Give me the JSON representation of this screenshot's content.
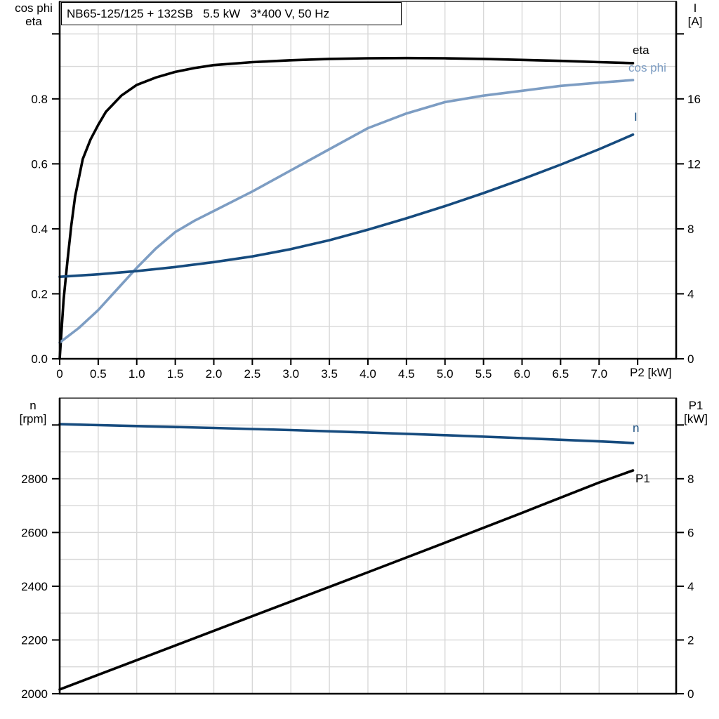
{
  "title_box": {
    "text": "NB65-125/125 + 132SB   5.5 kW   3*400 V, 50 Hz"
  },
  "labels": {
    "upper_left_title_1": "cos phi",
    "upper_left_title_2": "eta",
    "upper_right_title_1": "I",
    "upper_right_title_2": "[A]",
    "x_axis_title": "P2 [kW]",
    "lower_left_title_1": "n",
    "lower_left_title_2": "[rpm]",
    "lower_right_title_1": "P1",
    "lower_right_title_2": "[kW]",
    "curve_eta": "eta",
    "curve_cosphi": "cos phi",
    "curve_I": "I",
    "curve_n": "n",
    "curve_P1": "P1"
  },
  "colors": {
    "black_curve": "#000000",
    "light_blue_curve": "#7d9dc3",
    "dark_blue_curve": "#164b7e",
    "gridline": "#d8d8d8",
    "axis": "#000000"
  },
  "chart_data": [
    {
      "type": "line",
      "title": "NB65-125/125 + 132SB   5.5 kW   3*400 V, 50 Hz",
      "grid": true,
      "x_axis": {
        "title": "P2 [kW]",
        "min": 0,
        "max": 8,
        "grid_step": 0.5,
        "labeled_ticks": [
          0,
          0.5,
          1.0,
          1.5,
          2.0,
          2.5,
          3.0,
          3.5,
          4.0,
          4.5,
          5.0,
          5.5,
          6.0,
          6.5,
          7.0
        ],
        "tick_labels": [
          "0",
          "0.5",
          "1.0",
          "1.5",
          "2.0",
          "2.5",
          "3.0",
          "3.5",
          "4.0",
          "4.5",
          "5.0",
          "5.5",
          "6.0",
          "6.5",
          "7.0"
        ],
        "unlabeled_ticks": [
          7.5
        ]
      },
      "y_left": {
        "title": "cos phi / eta",
        "min": 0,
        "max": 1.1,
        "grid_step": 0.1,
        "labeled_ticks": [
          0.0,
          0.2,
          0.4,
          0.6,
          0.8
        ],
        "tick_labels": [
          "0.0",
          "0.2",
          "0.4",
          "0.6",
          "0.8"
        ],
        "unlabeled_ticks": [
          1.0
        ]
      },
      "y_right": {
        "title": "I [A]",
        "min": 0,
        "max": 22,
        "labeled_ticks": [
          0,
          4,
          8,
          12,
          16
        ],
        "tick_labels": [
          "0",
          "4",
          "8",
          "12",
          "16"
        ],
        "unlabeled_ticks": [
          20
        ]
      },
      "series": [
        {
          "name": "eta",
          "axis": "left",
          "color": "#000000",
          "x": [
            0,
            0.05,
            0.1,
            0.15,
            0.2,
            0.3,
            0.4,
            0.5,
            0.6,
            0.8,
            1.0,
            1.25,
            1.5,
            1.75,
            2.0,
            2.5,
            3.0,
            3.5,
            4.0,
            4.5,
            5.0,
            5.5,
            6.0,
            6.5,
            7.0,
            7.44
          ],
          "y": [
            0,
            0.18,
            0.3,
            0.41,
            0.5,
            0.615,
            0.675,
            0.72,
            0.76,
            0.81,
            0.843,
            0.866,
            0.883,
            0.895,
            0.904,
            0.913,
            0.919,
            0.923,
            0.925,
            0.9255,
            0.925,
            0.923,
            0.92,
            0.917,
            0.913,
            0.91
          ]
        },
        {
          "name": "cos phi",
          "axis": "left",
          "color": "#7d9dc3",
          "x": [
            0,
            0.25,
            0.5,
            0.75,
            1.0,
            1.25,
            1.5,
            1.75,
            2.0,
            2.5,
            3.0,
            3.5,
            4.0,
            4.5,
            5.0,
            5.5,
            6.0,
            6.5,
            7.0,
            7.44
          ],
          "y": [
            0.05,
            0.095,
            0.15,
            0.215,
            0.28,
            0.34,
            0.39,
            0.425,
            0.455,
            0.515,
            0.58,
            0.645,
            0.71,
            0.755,
            0.79,
            0.81,
            0.825,
            0.84,
            0.85,
            0.858
          ]
        },
        {
          "name": "I",
          "axis": "right",
          "color": "#164b7e",
          "x": [
            0,
            0.5,
            1.0,
            1.5,
            2.0,
            2.5,
            3.0,
            3.5,
            4.0,
            4.5,
            5.0,
            5.5,
            6.0,
            6.5,
            7.0,
            7.44
          ],
          "y": [
            5.05,
            5.2,
            5.4,
            5.65,
            5.95,
            6.3,
            6.75,
            7.3,
            7.95,
            8.65,
            9.4,
            10.2,
            11.05,
            11.95,
            12.9,
            13.8
          ]
        }
      ]
    },
    {
      "type": "line",
      "grid": true,
      "x_axis": {
        "title": "",
        "min": 0,
        "max": 8,
        "grid_step": 0.5,
        "labeled_ticks": [],
        "tick_labels": [],
        "unlabeled_ticks": []
      },
      "y_left": {
        "title": "n [rpm]",
        "min": 2000,
        "max": 3100,
        "grid_step": 100,
        "labeled_ticks": [
          2000,
          2200,
          2400,
          2600,
          2800
        ],
        "tick_labels": [
          "2000",
          "2200",
          "2400",
          "2600",
          "2800"
        ],
        "unlabeled_ticks": [
          3000
        ]
      },
      "y_right": {
        "title": "P1 [kW]",
        "min": 0,
        "max": 11,
        "labeled_ticks": [
          0,
          2,
          4,
          6,
          8
        ],
        "tick_labels": [
          "0",
          "2",
          "4",
          "6",
          "8"
        ],
        "unlabeled_ticks": [
          10
        ]
      },
      "series": [
        {
          "name": "n",
          "axis": "left",
          "color": "#164b7e",
          "x": [
            0,
            1,
            2,
            3,
            4,
            5,
            6,
            7,
            7.44
          ],
          "y": [
            3003,
            2996,
            2989,
            2981,
            2972,
            2962,
            2951,
            2939,
            2933
          ]
        },
        {
          "name": "P1",
          "axis": "right",
          "color": "#000000",
          "x": [
            0,
            1,
            2,
            3,
            4,
            5,
            6,
            7,
            7.44
          ],
          "y": [
            0.16,
            1.25,
            2.34,
            3.43,
            4.52,
            5.62,
            6.73,
            7.86,
            8.31
          ]
        }
      ]
    }
  ]
}
